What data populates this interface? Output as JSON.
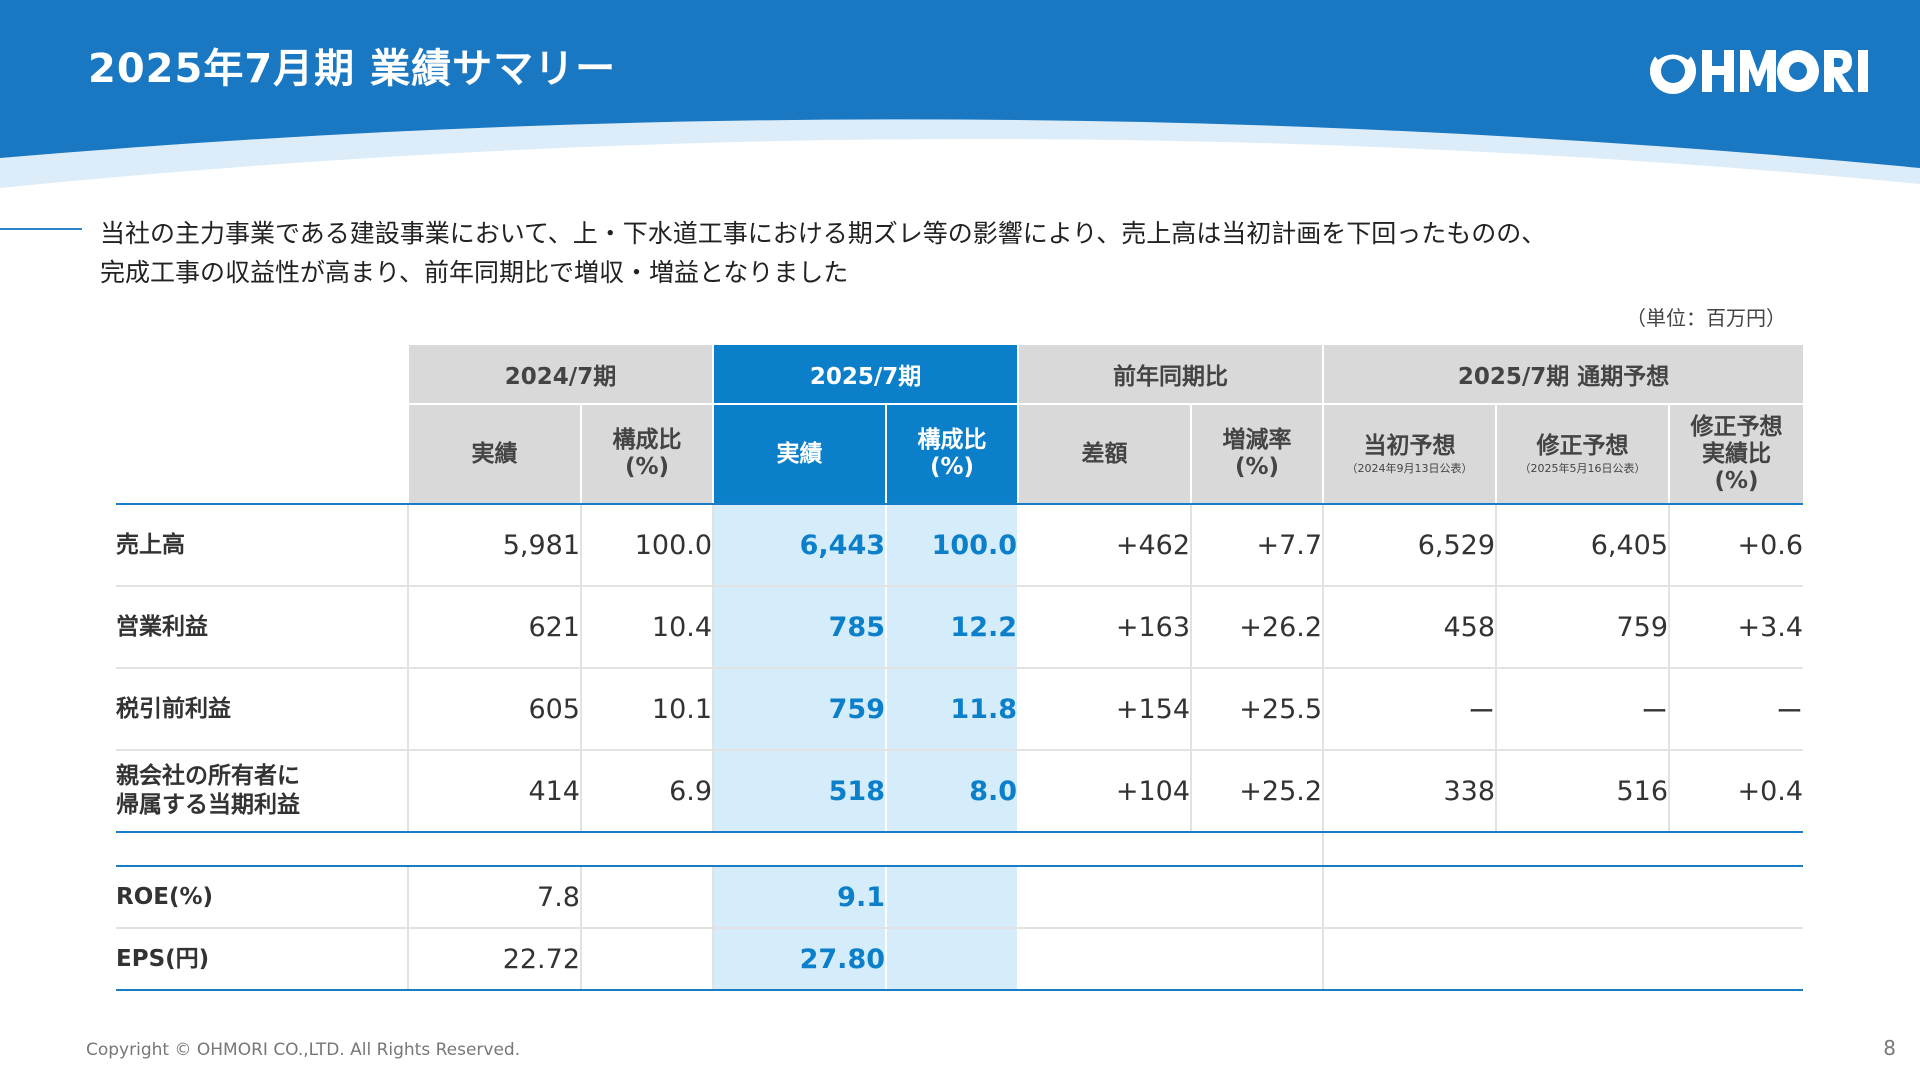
{
  "header": {
    "title": "2025年7月期 業績サマリー",
    "logo_text": "OHMORI"
  },
  "lead": {
    "line1": "当社の主力事業である建設事業において、上・下水道工事における期ズレ等の影響により、売上高は当初計画を下回ったものの、",
    "line2": "完成工事の収益性が高まり、前年同期比で増収・増益となりました"
  },
  "unit_note": "（単位：百万円）",
  "table": {
    "groups": [
      "2024/7期",
      "2025/7期",
      "前年同期比",
      "2025/7期 通期予想"
    ],
    "subheaders": {
      "prev_actual": "実績",
      "prev_ratio": [
        "構成比",
        "(%)"
      ],
      "cur_actual": "実績",
      "cur_ratio": [
        "構成比",
        "(%)"
      ],
      "diff": "差額",
      "rate": [
        "増減率",
        "(%)"
      ],
      "initial": "当初予想",
      "initial_date": "（2024年9月13日公表）",
      "revised": "修正予想",
      "revised_date": "（2025年5月16日公表）",
      "vs_revised": [
        "修正予想",
        "実績比",
        "(%)"
      ]
    },
    "rows": [
      {
        "label": [
          "売上高"
        ],
        "prev_actual": "5,981",
        "prev_ratio": "100.0",
        "cur_actual": "6,443",
        "cur_ratio": "100.0",
        "diff": "+462",
        "rate": "+7.7",
        "initial": "6,529",
        "revised": "6,405",
        "vs_revised": "+0.6"
      },
      {
        "label": [
          "営業利益"
        ],
        "prev_actual": "621",
        "prev_ratio": "10.4",
        "cur_actual": "785",
        "cur_ratio": "12.2",
        "diff": "+163",
        "rate": "+26.2",
        "initial": "458",
        "revised": "759",
        "vs_revised": "+3.4"
      },
      {
        "label": [
          "税引前利益"
        ],
        "prev_actual": "605",
        "prev_ratio": "10.1",
        "cur_actual": "759",
        "cur_ratio": "11.8",
        "diff": "+154",
        "rate": "+25.5",
        "initial": "ー",
        "revised": "ー",
        "vs_revised": "ー"
      },
      {
        "label": [
          "親会社の所有者に",
          "帰属する当期利益"
        ],
        "prev_actual": "414",
        "prev_ratio": "6.9",
        "cur_actual": "518",
        "cur_ratio": "8.0",
        "diff": "+104",
        "rate": "+25.2",
        "initial": "338",
        "revised": "516",
        "vs_revised": "+0.4"
      }
    ],
    "ratios": [
      {
        "label": "ROE(%)",
        "prev": "7.8",
        "cur": "9.1"
      },
      {
        "label": "EPS(円)",
        "prev": "22.72",
        "cur": "27.80"
      }
    ]
  },
  "footer": {
    "copyright": "Copyright © OHMORI CO.,LTD. All Rights Reserved.",
    "page": "8"
  },
  "colors": {
    "brand_blue": "#1a78c2",
    "highlight_header": "#0b7fc9",
    "highlight_cell": "#d5ecfa",
    "header_gray": "#d9d9d9"
  }
}
